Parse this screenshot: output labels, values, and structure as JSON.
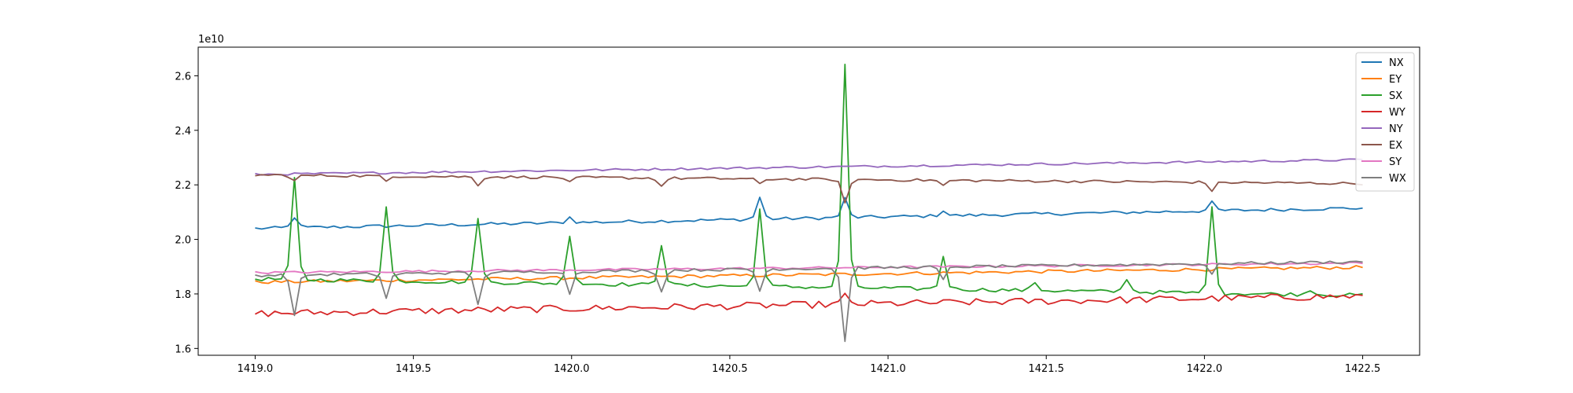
{
  "chart_data": {
    "type": "line",
    "title": "",
    "xlabel": "",
    "ylabel": "",
    "offset_text": "1e10",
    "xlim": [
      1418.82,
      1422.68
    ],
    "ylim": [
      1.575,
      2.705
    ],
    "xticks": [
      1419.0,
      1419.5,
      1420.0,
      1420.5,
      1421.0,
      1421.5,
      1422.0,
      1422.5
    ],
    "xtick_labels": [
      "1419.0",
      "1419.5",
      "1420.0",
      "1420.5",
      "1421.0",
      "1421.5",
      "1422.0",
      "1422.5"
    ],
    "yticks": [
      1.6,
      1.8,
      2.0,
      2.2,
      2.4,
      2.6
    ],
    "ytick_labels": [
      "1.6",
      "1.8",
      "2.0",
      "2.2",
      "2.4",
      "2.6"
    ],
    "x_start": 1419.0,
    "x_end": 1422.5,
    "n_points": 170,
    "legend": {
      "location": "upper right",
      "entries": [
        "NX",
        "EY",
        "SX",
        "WY",
        "NY",
        "EX",
        "SY",
        "WX"
      ]
    },
    "series": [
      {
        "name": "NX",
        "color": "#1f77b4",
        "start": 2.04,
        "end": 2.115,
        "noise": 0.006,
        "spikes": [
          [
            1419.12,
            0.04
          ],
          [
            1420.0,
            0.02
          ],
          [
            1420.59,
            0.08
          ],
          [
            1420.87,
            0.07
          ],
          [
            1421.17,
            0.02
          ],
          [
            1422.03,
            0.03
          ]
        ]
      },
      {
        "name": "EY",
        "color": "#ff7f0e",
        "start": 1.843,
        "end": 1.898,
        "noise": 0.006,
        "spikes": []
      },
      {
        "name": "SX",
        "color": "#2ca02c",
        "start": 1.855,
        "end": 1.795,
        "noise": 0.007,
        "spikes": [
          [
            1419.12,
            0.37
          ],
          [
            1419.41,
            0.27
          ],
          [
            1419.71,
            0.24
          ],
          [
            1420.0,
            0.18
          ],
          [
            1420.29,
            0.15
          ],
          [
            1420.59,
            0.29
          ],
          [
            1420.87,
            0.82
          ],
          [
            1421.17,
            0.12
          ],
          [
            1421.46,
            0.03
          ],
          [
            1421.76,
            0.05
          ],
          [
            1422.03,
            0.31
          ],
          [
            1422.33,
            0.02
          ]
        ]
      },
      {
        "name": "WY",
        "color": "#d62728",
        "start": 1.728,
        "end": 1.792,
        "noise": 0.013,
        "spikes": [
          [
            1420.87,
            0.03
          ]
        ]
      },
      {
        "name": "NY",
        "color": "#9467bd",
        "start": 2.238,
        "end": 2.292,
        "noise": 0.004,
        "spikes": []
      },
      {
        "name": "EX",
        "color": "#8c564b",
        "start": 2.236,
        "end": 2.205,
        "noise": 0.005,
        "spikes": [
          [
            1419.12,
            -0.02
          ],
          [
            1419.41,
            -0.02
          ],
          [
            1419.71,
            -0.03
          ],
          [
            1420.0,
            -0.02
          ],
          [
            1420.29,
            -0.03
          ],
          [
            1420.59,
            -0.02
          ],
          [
            1420.87,
            -0.09
          ],
          [
            1421.17,
            -0.02
          ],
          [
            1422.03,
            -0.03
          ]
        ]
      },
      {
        "name": "SY",
        "color": "#e377c2",
        "start": 1.878,
        "end": 1.913,
        "noise": 0.004,
        "spikes": []
      },
      {
        "name": "WX",
        "color": "#7f7f7f",
        "start": 1.868,
        "end": 1.918,
        "noise": 0.005,
        "spikes": [
          [
            1419.12,
            -0.15
          ],
          [
            1419.41,
            -0.09
          ],
          [
            1419.71,
            -0.12
          ],
          [
            1420.0,
            -0.08
          ],
          [
            1420.29,
            -0.08
          ],
          [
            1420.59,
            -0.08
          ],
          [
            1420.87,
            -0.27
          ],
          [
            1421.17,
            -0.05
          ],
          [
            1422.03,
            -0.04
          ]
        ]
      }
    ]
  }
}
